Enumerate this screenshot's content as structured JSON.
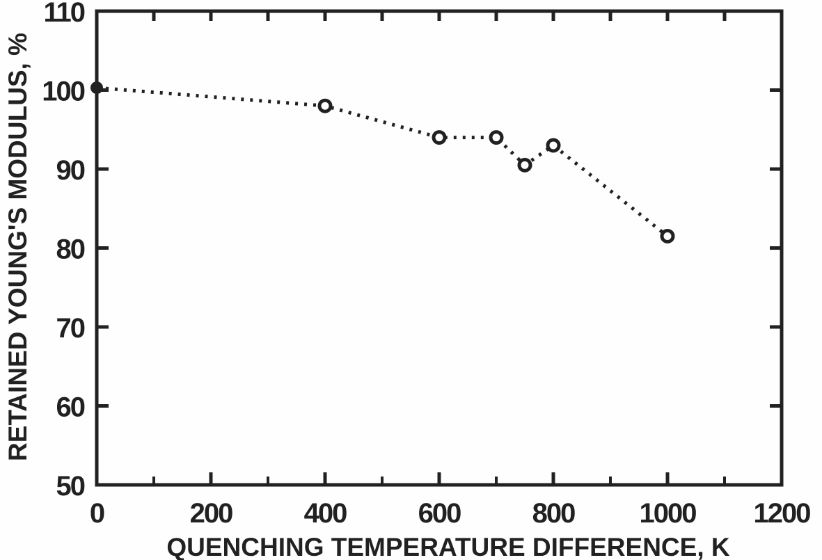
{
  "figure": {
    "background": "#fefefe",
    "ink_color": "#212121"
  },
  "chart_data": {
    "type": "line",
    "title": "",
    "xlabel": "QUENCHING TEMPERATURE DIFFERENCE, K",
    "ylabel": "RETAINED YOUNG'S MODULUS, %",
    "xlim": [
      0,
      1200
    ],
    "ylim": [
      50,
      110
    ],
    "x_ticks": [
      0,
      200,
      400,
      600,
      800,
      1000,
      1200
    ],
    "x_minor_ticks": [
      100,
      300,
      500,
      700,
      900,
      1100
    ],
    "y_ticks": [
      110,
      100,
      90,
      80,
      70,
      60,
      50
    ],
    "y_inner_ticks": [
      100,
      90,
      80,
      70,
      60
    ],
    "top_ticks": [
      100,
      200,
      300,
      400,
      500,
      600,
      700,
      800,
      900,
      1000,
      1100
    ],
    "grid": false,
    "legend": null,
    "line_style": "dotted",
    "marker_style": "open-circle",
    "series": [
      {
        "name": "retained-youngs-modulus",
        "points": [
          {
            "x": 0,
            "y": 100.3,
            "marker": "filled"
          },
          {
            "x": 400,
            "y": 98,
            "marker": "open"
          },
          {
            "x": 600,
            "y": 94,
            "marker": "open"
          },
          {
            "x": 700,
            "y": 94,
            "marker": "open"
          },
          {
            "x": 750,
            "y": 90.5,
            "marker": "open"
          },
          {
            "x": 800,
            "y": 93,
            "marker": "open"
          },
          {
            "x": 1000,
            "y": 81.5,
            "marker": "open"
          }
        ]
      }
    ]
  }
}
